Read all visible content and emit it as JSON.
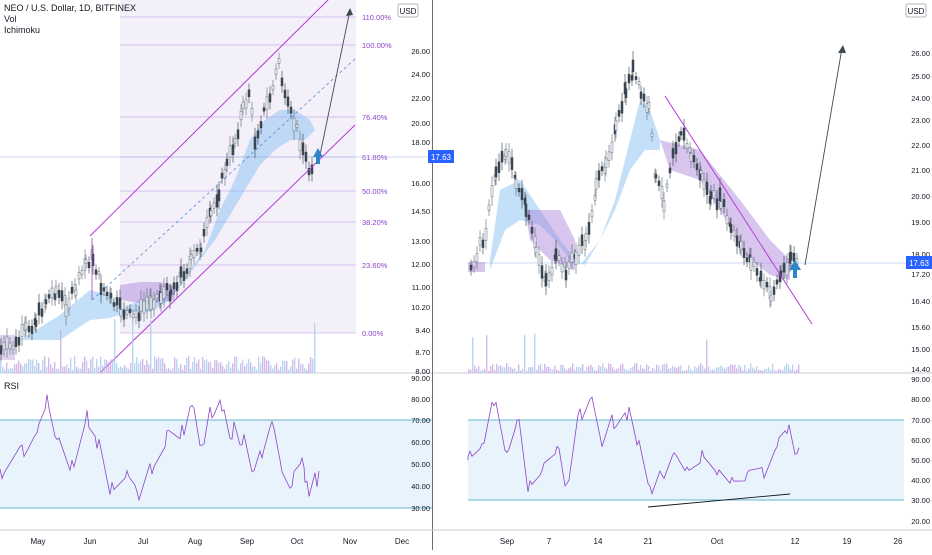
{
  "left_panel": {
    "legend": {
      "title": "NEO / U.S. Dollar, 1D, BITFINEX",
      "vol": "Vol",
      "ichimoku": "Ichimoku"
    },
    "price_axis": {
      "ticks": [
        "26.00",
        "24.00",
        "22.00",
        "20.00",
        "18.00",
        "16.00",
        "14.50",
        "13.00",
        "12.00",
        "11.00",
        "10.20",
        "9.40",
        "8.70",
        "8.00"
      ],
      "currency": "USD",
      "current_price": "17.63"
    },
    "fib_levels": [
      "110.00%",
      "100.00%",
      "76.40%",
      "61.80%",
      "50.00%",
      "38.20%",
      "23.60%",
      "0.00%"
    ],
    "rsi_label": "RSI",
    "rsi_axis": [
      "90.00",
      "80.00",
      "70.00",
      "60.00",
      "50.00",
      "40.00",
      "30.00"
    ],
    "time_axis": [
      "May",
      "Jun",
      "Jul",
      "Aug",
      "Sep",
      "Oct",
      "Nov",
      "Dec"
    ]
  },
  "right_panel": {
    "price_axis": {
      "ticks": [
        "26.00",
        "25.00",
        "24.00",
        "23.00",
        "22.00",
        "21.00",
        "20.00",
        "19.00",
        "18.00",
        "17.20",
        "16.40",
        "15.60",
        "15.00",
        "14.40"
      ],
      "currency": "USD",
      "current_price": "17.63"
    },
    "rsi_axis": [
      "90.00",
      "80.00",
      "70.00",
      "60.00",
      "50.00",
      "40.00",
      "30.00",
      "20.00"
    ],
    "time_axis": [
      "Sep",
      "7",
      "14",
      "21",
      "Oct",
      "12",
      "19",
      "26"
    ]
  },
  "chart_data": [
    {
      "type": "candlestick",
      "panel": "left",
      "title": "NEO / U.S. Dollar, 1D, BITFINEX",
      "indicators": [
        "Vol",
        "Ichimoku",
        "RSI"
      ],
      "current_price": 17.63,
      "fibonacci_retracement": [
        {
          "label": "0.00%",
          "price": 9.5
        },
        {
          "label": "23.60%",
          "price": 12.0
        },
        {
          "label": "38.20%",
          "price": 13.9
        },
        {
          "label": "50.00%",
          "price": 16.0
        },
        {
          "label": "61.80%",
          "price": 18.0
        },
        {
          "label": "76.40%",
          "price": 20.5
        },
        {
          "label": "100.00%",
          "price": 26.3
        },
        {
          "label": "110.00%",
          "price": 29.0
        }
      ],
      "rsi_band": [
        30,
        70
      ]
    },
    {
      "type": "candlestick",
      "panel": "right",
      "current_price": 17.63,
      "rsi_band": [
        30,
        70
      ]
    }
  ]
}
